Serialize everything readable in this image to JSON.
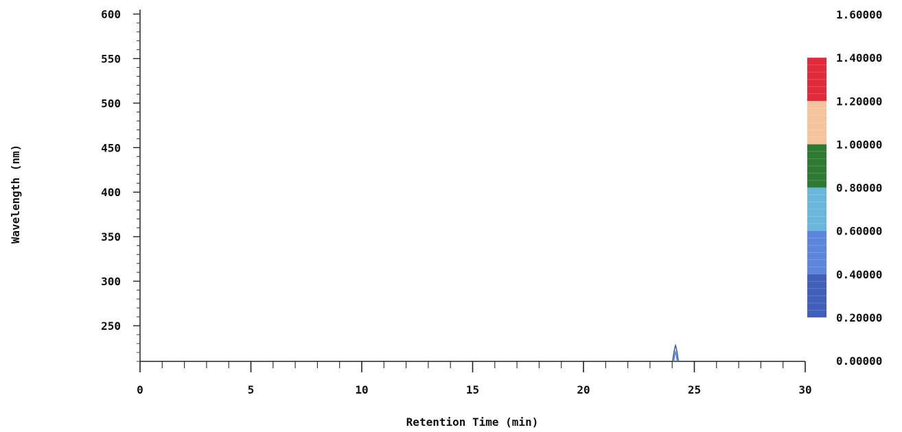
{
  "chart_data": {
    "type": "heatmap",
    "title": "",
    "xlabel": "Retention Time (min)",
    "ylabel": "Wavelength (nm)",
    "xlim": [
      0,
      30
    ],
    "ylim": [
      210,
      605
    ],
    "x_ticks": [
      0,
      5,
      10,
      15,
      20,
      25,
      30
    ],
    "x_tick_labels": [
      "0",
      "5",
      "10",
      "15",
      "20",
      "25",
      "30"
    ],
    "x_minor_step": 1,
    "y_ticks": [
      250,
      300,
      350,
      400,
      450,
      500,
      550,
      600
    ],
    "y_tick_labels": [
      "250",
      "300",
      "350",
      "400",
      "450",
      "500",
      "550",
      "600"
    ],
    "y_minor_step": 10,
    "grid": false,
    "legend": "right",
    "colorscale": {
      "min": 0,
      "max": 1.6,
      "ticks": [
        0,
        0.2,
        0.4,
        0.6,
        0.8,
        1.0,
        1.2,
        1.4,
        1.6
      ],
      "tick_labels": [
        "0.00000",
        "0.20000",
        "0.40000",
        "0.60000",
        "0.80000",
        "1.00000",
        "1.20000",
        "1.40000",
        "1.60000"
      ],
      "bands": [
        {
          "from": 0.2,
          "to": 0.4,
          "color": "#3f5fb8"
        },
        {
          "from": 0.4,
          "to": 0.6,
          "color": "#5b86dc"
        },
        {
          "from": 0.6,
          "to": 0.8,
          "color": "#6ab7dc"
        },
        {
          "from": 0.8,
          "to": 1.0,
          "color": "#2f7a32"
        },
        {
          "from": 1.0,
          "to": 1.2,
          "color": "#f4c49e"
        },
        {
          "from": 1.2,
          "to": 1.4,
          "color": "#e22b3a"
        }
      ]
    },
    "peaks": [
      {
        "time": 24.15,
        "wavelength_min": 210,
        "wavelength_max": 228,
        "half_width_min": 0.13,
        "max_level": 0.6
      }
    ]
  }
}
